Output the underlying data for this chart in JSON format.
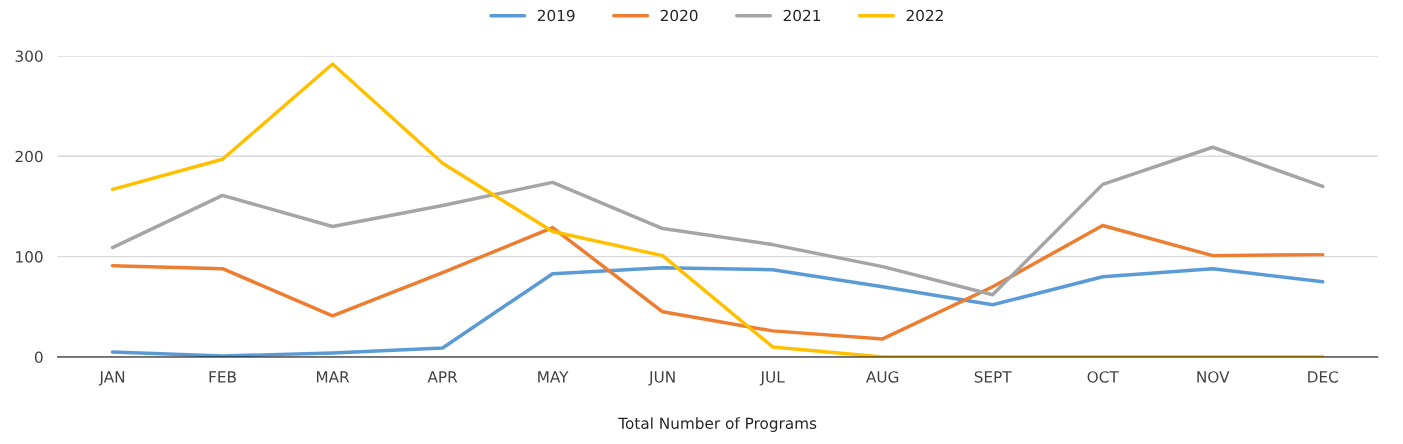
{
  "chart_data": {
    "type": "line",
    "xlabel": "Total Number of Programs",
    "categories": [
      "JAN",
      "FEB",
      "MAR",
      "APR",
      "MAY",
      "JUN",
      "JUL",
      "AUG",
      "SEPT",
      "OCT",
      "NOV",
      "DEC"
    ],
    "series": [
      {
        "name": "2019",
        "color": "#5b9bd5",
        "values": [
          5,
          1,
          4,
          9,
          83,
          89,
          87,
          70,
          52,
          80,
          88,
          75
        ]
      },
      {
        "name": "2020",
        "color": "#ed7d31",
        "values": [
          91,
          88,
          41,
          84,
          129,
          45,
          26,
          18,
          70,
          131,
          101,
          102
        ]
      },
      {
        "name": "2021",
        "color": "#a5a5a5",
        "values": [
          109,
          161,
          130,
          151,
          174,
          128,
          112,
          90,
          62,
          172,
          209,
          170
        ]
      },
      {
        "name": "2022",
        "color": "#ffc000",
        "values": [
          167,
          197,
          292,
          193,
          125,
          101,
          10,
          0,
          0,
          0,
          0,
          0
        ]
      }
    ],
    "ylim": [
      0,
      300
    ],
    "yticks": [
      0,
      100,
      200,
      300
    ],
    "grid": "y",
    "legend": "top",
    "marker": "none",
    "line_style": "solid"
  }
}
